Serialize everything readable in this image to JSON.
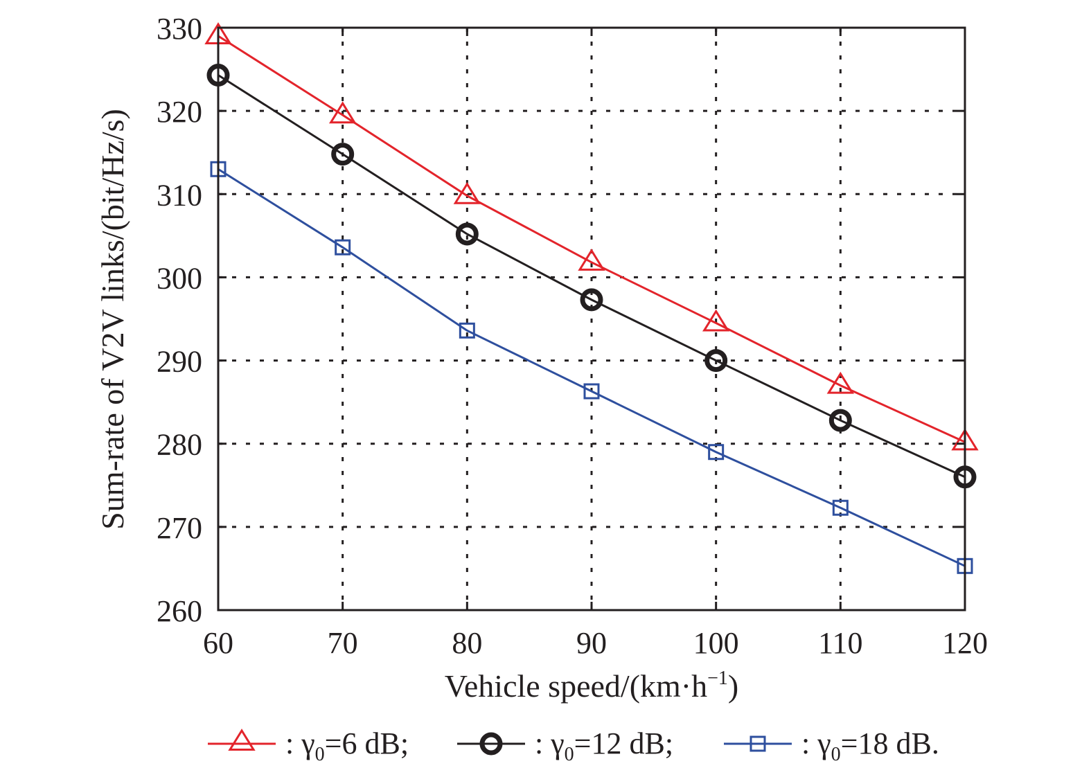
{
  "chart_data": {
    "type": "line",
    "title": "",
    "xlabel": "Vehicle speed/(km·h",
    "xlabel_superscript": "−1",
    "xlabel_suffix": ")",
    "ylabel": "Sum-rate of V2V links/(bit/Hz/s)",
    "xlim": [
      60,
      120
    ],
    "ylim": [
      260,
      330
    ],
    "x_ticks": [
      60,
      70,
      80,
      90,
      100,
      110,
      120
    ],
    "y_ticks": [
      260,
      270,
      280,
      290,
      300,
      310,
      320,
      330
    ],
    "grid": true,
    "legend_position": "bottom",
    "x": [
      60,
      70,
      80,
      90,
      100,
      110,
      120
    ],
    "series": [
      {
        "name": "γ0=6 dB",
        "legend_prefix": ": γ",
        "legend_sub": "0",
        "legend_suffix": "=6 dB;",
        "marker": "triangle",
        "color": "#e3242b",
        "values": [
          329.0,
          319.5,
          309.8,
          301.8,
          294.5,
          287.0,
          280.2
        ]
      },
      {
        "name": "γ0=12 dB",
        "legend_prefix": ": γ",
        "legend_sub": "0",
        "legend_suffix": "=12 dB;",
        "marker": "circle",
        "color": "#231f20",
        "values": [
          324.3,
          314.8,
          305.2,
          297.3,
          290.0,
          282.8,
          276.0
        ]
      },
      {
        "name": "γ0=18 dB",
        "legend_prefix": ": γ",
        "legend_sub": "0",
        "legend_suffix": "=18 dB.",
        "marker": "square",
        "color": "#2e4f9e",
        "values": [
          313.0,
          303.6,
          293.6,
          286.3,
          279.0,
          272.3,
          265.3
        ]
      }
    ]
  }
}
